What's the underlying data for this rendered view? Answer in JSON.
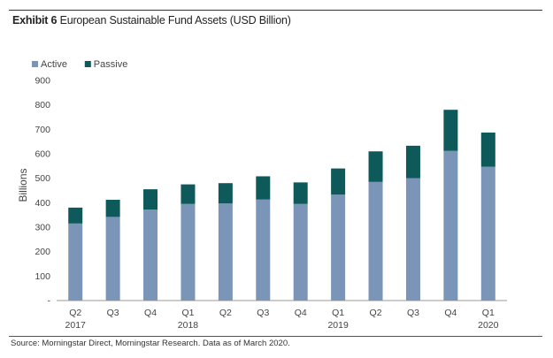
{
  "header": {
    "exhibit_label": "Exhibit 6",
    "title": "European Sustainable Fund Assets (USD Billion)"
  },
  "footer": {
    "source": "Source: Morningstar Direct, Morningstar Research. Data as of March 2020."
  },
  "colors": {
    "active": "#7A95B8",
    "passive": "#0E5A5A"
  },
  "chart_data": {
    "type": "bar",
    "stacked": true,
    "title": "",
    "xlabel": "",
    "ylabel": "Billions",
    "ylim": [
      0,
      900
    ],
    "yticks": [
      "-",
      "100",
      "200",
      "300",
      "400",
      "500",
      "600",
      "700",
      "800",
      "900"
    ],
    "grid": false,
    "legend_position": "top-left",
    "categories": [
      {
        "quarter": "Q2",
        "year": "2017"
      },
      {
        "quarter": "Q3",
        "year": ""
      },
      {
        "quarter": "Q4",
        "year": ""
      },
      {
        "quarter": "Q1",
        "year": "2018"
      },
      {
        "quarter": "Q2",
        "year": ""
      },
      {
        "quarter": "Q3",
        "year": ""
      },
      {
        "quarter": "Q4",
        "year": ""
      },
      {
        "quarter": "Q1",
        "year": "2019"
      },
      {
        "quarter": "Q2",
        "year": ""
      },
      {
        "quarter": "Q3",
        "year": ""
      },
      {
        "quarter": "Q4",
        "year": ""
      },
      {
        "quarter": "Q1",
        "year": "2020"
      }
    ],
    "series": [
      {
        "name": "Active",
        "values": [
          315,
          342,
          372,
          395,
          397,
          413,
          395,
          433,
          485,
          500,
          612,
          547
        ]
      },
      {
        "name": "Passive",
        "values": [
          65,
          70,
          83,
          80,
          83,
          95,
          88,
          107,
          125,
          133,
          168,
          140
        ]
      }
    ]
  }
}
